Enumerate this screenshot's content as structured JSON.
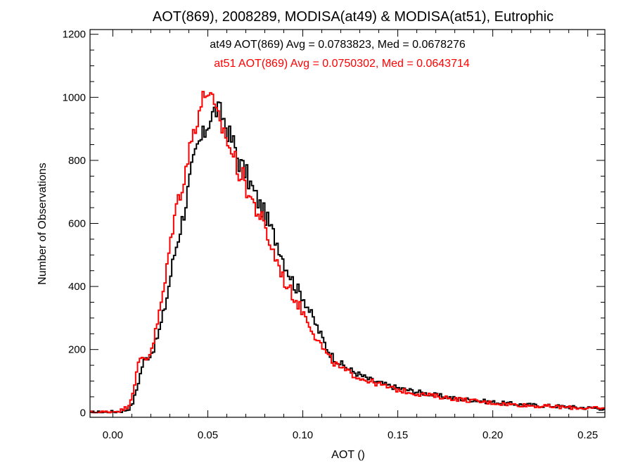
{
  "chart_data": {
    "type": "line",
    "step": true,
    "title": "AOT(869), 2008289, MODISA(at49) & MODISA(at51), Eutrophic",
    "xlabel": "AOT ()",
    "ylabel": "Number of Observations",
    "xlim": [
      -0.012,
      0.259
    ],
    "ylim": [
      -15,
      1215
    ],
    "xticks": [
      0.0,
      0.05,
      0.1,
      0.15,
      0.2,
      0.25
    ],
    "xtick_labels": [
      "0.00",
      "0.05",
      "0.10",
      "0.15",
      "0.20",
      "0.25"
    ],
    "yticks": [
      0,
      200,
      400,
      600,
      800,
      1000,
      1200
    ],
    "ytick_labels": [
      "0",
      "200",
      "400",
      "600",
      "800",
      "1000",
      "1200"
    ],
    "grid": false,
    "series": [
      {
        "name": "at49",
        "color": "#000000",
        "annotation": "at49 AOT(869) Avg = 0.0783823, Med = 0.0678276",
        "x": [
          -0.01,
          0.0,
          0.005,
          0.008,
          0.01,
          0.012,
          0.014,
          0.016,
          0.018,
          0.02,
          0.022,
          0.025,
          0.028,
          0.03,
          0.032,
          0.035,
          0.038,
          0.04,
          0.042,
          0.045,
          0.048,
          0.05,
          0.052,
          0.054,
          0.056,
          0.058,
          0.06,
          0.062,
          0.064,
          0.066,
          0.068,
          0.07,
          0.072,
          0.075,
          0.078,
          0.08,
          0.082,
          0.085,
          0.088,
          0.09,
          0.093,
          0.096,
          0.1,
          0.103,
          0.106,
          0.11,
          0.113,
          0.116,
          0.12,
          0.125,
          0.13,
          0.135,
          0.14,
          0.145,
          0.15,
          0.155,
          0.16,
          0.165,
          0.17,
          0.175,
          0.18,
          0.185,
          0.19,
          0.195,
          0.2,
          0.205,
          0.21,
          0.215,
          0.22,
          0.225,
          0.23,
          0.235,
          0.24,
          0.245,
          0.25,
          0.255,
          0.259
        ],
        "y": [
          0,
          2,
          5,
          10,
          22,
          60,
          110,
          160,
          175,
          185,
          210,
          270,
          350,
          420,
          490,
          570,
          650,
          720,
          780,
          850,
          880,
          920,
          940,
          960,
          955,
          940,
          900,
          870,
          850,
          800,
          780,
          760,
          730,
          690,
          650,
          630,
          600,
          560,
          520,
          480,
          440,
          400,
          370,
          330,
          290,
          240,
          200,
          175,
          155,
          135,
          120,
          105,
          95,
          85,
          78,
          72,
          66,
          60,
          55,
          50,
          45,
          42,
          40,
          36,
          33,
          30,
          28,
          25,
          24,
          22,
          21,
          20,
          18,
          16,
          15,
          14,
          12
        ]
      },
      {
        "name": "at51",
        "color": "#ff0000",
        "annotation": "at51 AOT(869) Avg = 0.0750302, Med = 0.0643714",
        "x": [
          -0.01,
          0.0,
          0.005,
          0.008,
          0.01,
          0.012,
          0.014,
          0.016,
          0.018,
          0.02,
          0.022,
          0.025,
          0.028,
          0.03,
          0.032,
          0.035,
          0.038,
          0.04,
          0.042,
          0.045,
          0.048,
          0.05,
          0.052,
          0.054,
          0.056,
          0.058,
          0.06,
          0.062,
          0.064,
          0.066,
          0.068,
          0.07,
          0.072,
          0.075,
          0.078,
          0.08,
          0.082,
          0.085,
          0.088,
          0.09,
          0.093,
          0.096,
          0.1,
          0.103,
          0.106,
          0.11,
          0.113,
          0.116,
          0.12,
          0.125,
          0.13,
          0.135,
          0.14,
          0.145,
          0.15,
          0.155,
          0.16,
          0.165,
          0.17,
          0.175,
          0.18,
          0.185,
          0.19,
          0.195,
          0.2,
          0.205,
          0.21,
          0.215,
          0.22,
          0.225,
          0.23,
          0.235,
          0.24,
          0.245,
          0.25,
          0.255,
          0.259
        ],
        "y": [
          0,
          3,
          8,
          20,
          50,
          110,
          165,
          175,
          170,
          195,
          240,
          330,
          430,
          530,
          610,
          690,
          760,
          820,
          880,
          950,
          1000,
          1030,
          990,
          950,
          920,
          900,
          870,
          830,
          810,
          770,
          750,
          720,
          690,
          650,
          620,
          580,
          550,
          500,
          460,
          420,
          390,
          360,
          320,
          290,
          250,
          210,
          180,
          160,
          140,
          125,
          110,
          100,
          90,
          80,
          72,
          66,
          60,
          56,
          52,
          48,
          44,
          40,
          37,
          33,
          31,
          28,
          26,
          24,
          22,
          20,
          19,
          18,
          16,
          15,
          14,
          13,
          12
        ]
      }
    ]
  }
}
